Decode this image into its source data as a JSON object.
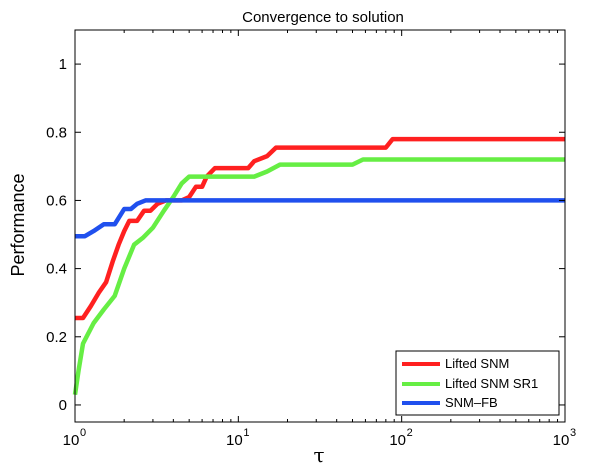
{
  "chart_data": {
    "type": "line",
    "title": "Convergence to solution",
    "xlabel": "τ",
    "ylabel": "Performance",
    "xscale": "log",
    "xlim": [
      1,
      1000
    ],
    "ylim": [
      -0.05,
      1.1
    ],
    "xticks": [
      {
        "value": 1,
        "base": "10",
        "exp": "0"
      },
      {
        "value": 10,
        "base": "10",
        "exp": "1"
      },
      {
        "value": 100,
        "base": "10",
        "exp": "2"
      },
      {
        "value": 1000,
        "base": "10",
        "exp": "3"
      }
    ],
    "yticks": [
      {
        "value": 0,
        "label": "0"
      },
      {
        "value": 0.2,
        "label": "0.2"
      },
      {
        "value": 0.4,
        "label": "0.4"
      },
      {
        "value": 0.6,
        "label": "0.6"
      },
      {
        "value": 0.8,
        "label": "0.8"
      },
      {
        "value": 1,
        "label": "1"
      }
    ],
    "grid": false,
    "legend_position": "bottom-right",
    "series": [
      {
        "name": "Lifted SNM",
        "color": "#ff2020",
        "points": [
          [
            1.0,
            0.255
          ],
          [
            1.12,
            0.255
          ],
          [
            1.25,
            0.29
          ],
          [
            1.4,
            0.33
          ],
          [
            1.55,
            0.36
          ],
          [
            1.7,
            0.42
          ],
          [
            1.85,
            0.47
          ],
          [
            2.0,
            0.51
          ],
          [
            2.15,
            0.54
          ],
          [
            2.4,
            0.54
          ],
          [
            2.65,
            0.57
          ],
          [
            2.9,
            0.57
          ],
          [
            3.2,
            0.59
          ],
          [
            3.6,
            0.6
          ],
          [
            4.0,
            0.6
          ],
          [
            4.5,
            0.6
          ],
          [
            5.0,
            0.61
          ],
          [
            5.5,
            0.64
          ],
          [
            6.0,
            0.64
          ],
          [
            6.4,
            0.67
          ],
          [
            7.2,
            0.695
          ],
          [
            10.0,
            0.695
          ],
          [
            11.5,
            0.695
          ],
          [
            12.5,
            0.715
          ],
          [
            15.0,
            0.73
          ],
          [
            17.0,
            0.755
          ],
          [
            19.0,
            0.755
          ],
          [
            30.0,
            0.755
          ],
          [
            60.0,
            0.755
          ],
          [
            80.0,
            0.755
          ],
          [
            88.0,
            0.78
          ],
          [
            200.0,
            0.78
          ],
          [
            1000.0,
            0.78
          ]
        ]
      },
      {
        "name": "Lifted SNM SR1",
        "color": "#66ee44",
        "points": [
          [
            1.0,
            0.03
          ],
          [
            1.05,
            0.1
          ],
          [
            1.12,
            0.18
          ],
          [
            1.3,
            0.24
          ],
          [
            1.5,
            0.28
          ],
          [
            1.75,
            0.32
          ],
          [
            2.0,
            0.4
          ],
          [
            2.3,
            0.47
          ],
          [
            2.6,
            0.49
          ],
          [
            3.0,
            0.52
          ],
          [
            3.5,
            0.57
          ],
          [
            4.0,
            0.61
          ],
          [
            4.5,
            0.65
          ],
          [
            5.0,
            0.67
          ],
          [
            7.0,
            0.67
          ],
          [
            10.0,
            0.67
          ],
          [
            12.5,
            0.67
          ],
          [
            15.0,
            0.685
          ],
          [
            18.0,
            0.705
          ],
          [
            30.0,
            0.705
          ],
          [
            50.0,
            0.705
          ],
          [
            58.0,
            0.72
          ],
          [
            100.0,
            0.72
          ],
          [
            1000.0,
            0.72
          ]
        ]
      },
      {
        "name": "SNM-FB",
        "color": "#2050ee",
        "points": [
          [
            1.0,
            0.495
          ],
          [
            1.15,
            0.495
          ],
          [
            1.3,
            0.51
          ],
          [
            1.5,
            0.53
          ],
          [
            1.75,
            0.53
          ],
          [
            2.0,
            0.575
          ],
          [
            2.2,
            0.575
          ],
          [
            2.4,
            0.59
          ],
          [
            2.7,
            0.6
          ],
          [
            10.0,
            0.6
          ],
          [
            100.0,
            0.6
          ],
          [
            1000.0,
            0.6
          ]
        ]
      }
    ]
  },
  "legend": {
    "entries": [
      "Lifted SNM",
      "Lifted SNM SR1",
      "SNM–FB"
    ]
  }
}
